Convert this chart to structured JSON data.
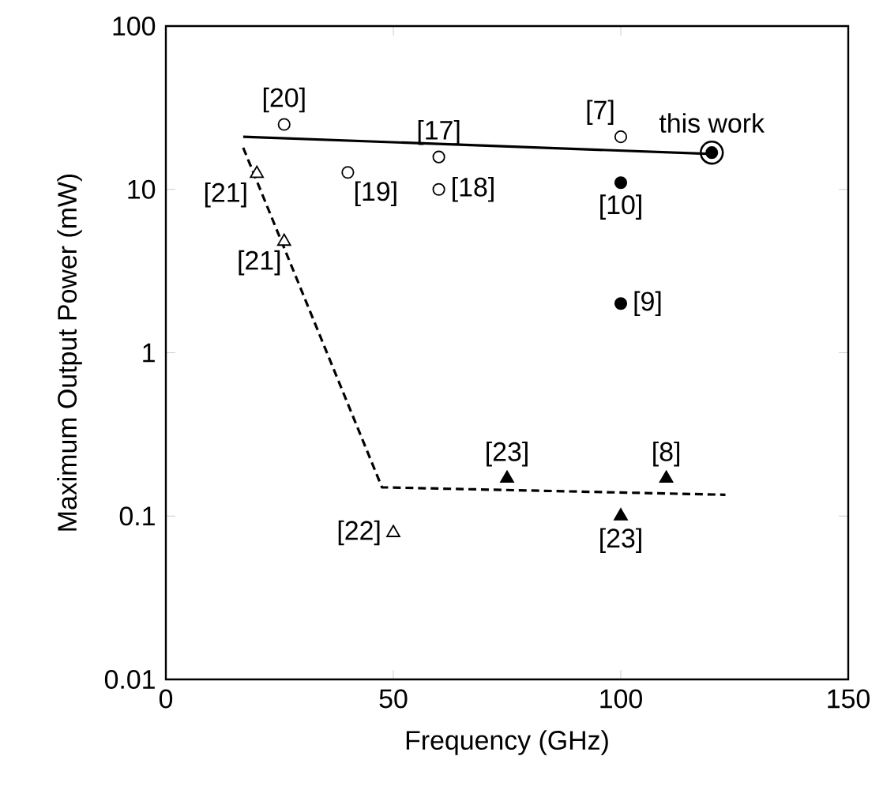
{
  "chart_data": {
    "type": "scatter",
    "xlabel": "Frequency (GHz)",
    "ylabel": "Maximum Output Power (mW)",
    "log": "y",
    "xlim": [
      0,
      150
    ],
    "ylim": [
      0.01,
      100
    ],
    "xticks": [
      0,
      50,
      100,
      150
    ],
    "yticks": [
      0.01,
      0.1,
      1,
      10,
      100
    ],
    "grid": false,
    "series": [
      {
        "marker": "circle",
        "color": "#ffffff",
        "x": [
          26,
          40,
          60,
          60,
          100
        ],
        "values": [
          25,
          12.7,
          15.8,
          10,
          21
        ]
      },
      {
        "marker": "circle",
        "color": "#000000",
        "x": [
          100,
          100
        ],
        "values": [
          11,
          2
        ]
      },
      {
        "marker": "triangle",
        "color": "#ffffff",
        "x": [
          20,
          26,
          50
        ],
        "values": [
          12.5,
          4.8,
          0.079
        ]
      },
      {
        "marker": "triangle",
        "color": "#000000",
        "x": [
          75,
          110,
          100
        ],
        "values": [
          0.17,
          0.17,
          0.1
        ]
      },
      {
        "marker": "circle",
        "color": "#000000",
        "x": [
          120
        ],
        "values": [
          16.8
        ]
      },
      {
        "type": "line",
        "line_style": "solid",
        "color": "#000000",
        "x": [
          17,
          120
        ],
        "values": [
          21,
          16.5
        ]
      },
      {
        "type": "line",
        "line_style": "dashed",
        "color": "#000000",
        "x": [
          17,
          47.5,
          123
        ],
        "values": [
          18,
          0.15,
          0.135
        ]
      }
    ],
    "annotations": [
      {
        "text": "[20]",
        "x": 26,
        "y": 25
      },
      {
        "text": "[17]",
        "x": 60,
        "y": 15.8
      },
      {
        "text": "[7]",
        "x": 100,
        "y": 21
      },
      {
        "text": "this work",
        "x": 120,
        "y": 16.8
      },
      {
        "text": "[21]",
        "x": 20,
        "y": 12.5
      },
      {
        "text": "[19]",
        "x": 40,
        "y": 12.7
      },
      {
        "text": "[18]",
        "x": 60,
        "y": 10
      },
      {
        "text": "[10]",
        "x": 100,
        "y": 11
      },
      {
        "text": "[21]",
        "x": 26,
        "y": 4.8
      },
      {
        "text": "[9]",
        "x": 100,
        "y": 2
      },
      {
        "text": "[23]",
        "x": 75,
        "y": 0.17
      },
      {
        "text": "[8]",
        "x": 110,
        "y": 0.17
      },
      {
        "text": "[22]",
        "x": 50,
        "y": 0.079
      },
      {
        "text": "[23]",
        "x": 100,
        "y": 0.1
      }
    ]
  }
}
